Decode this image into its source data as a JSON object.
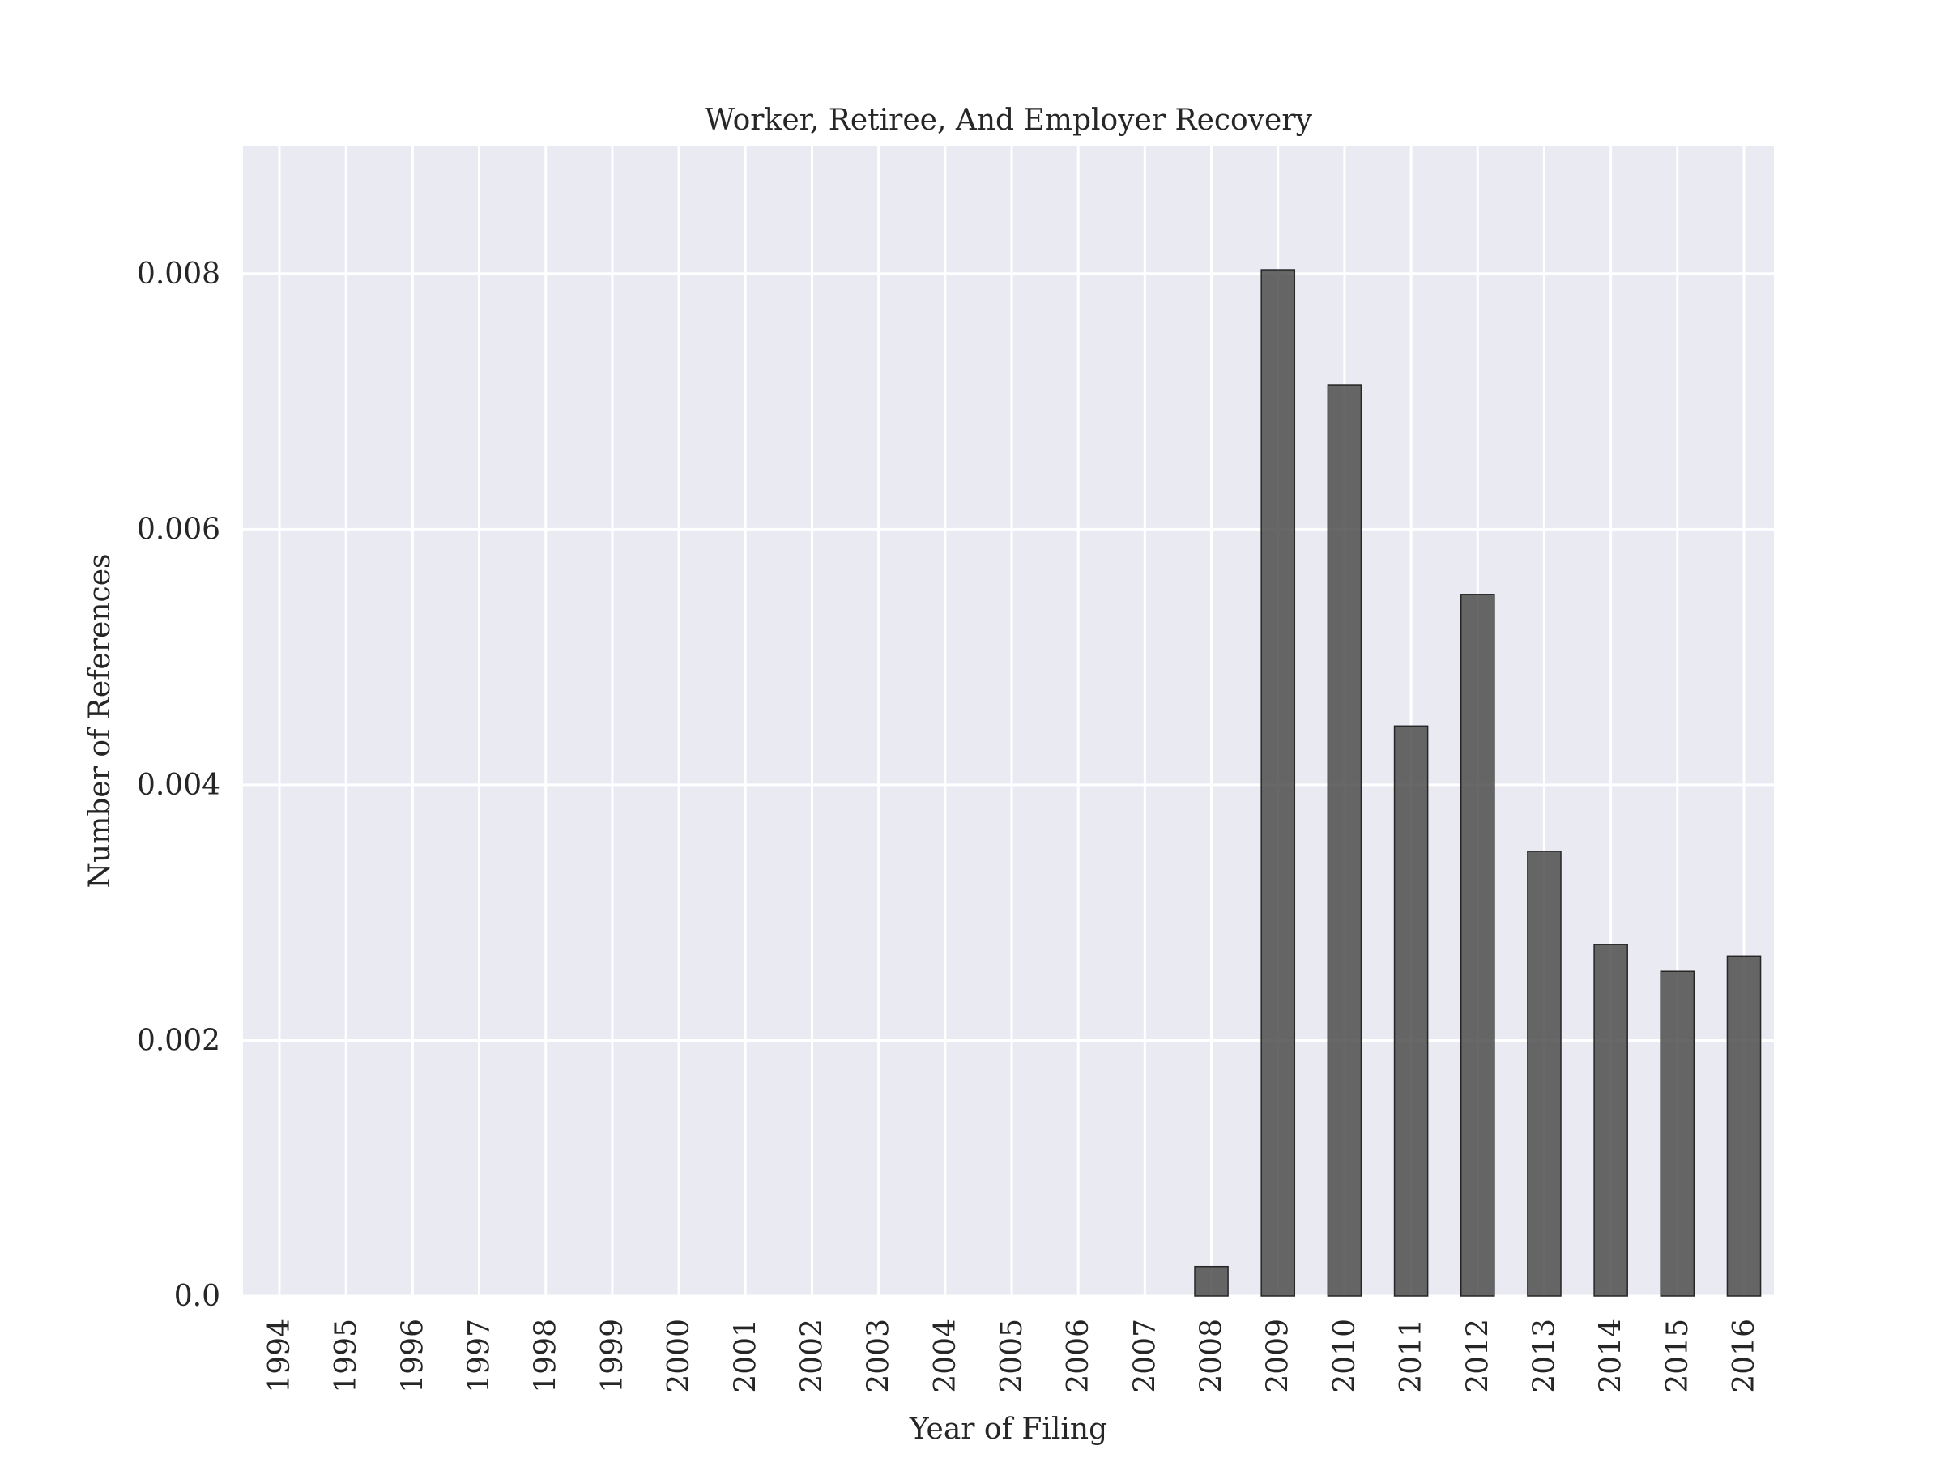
{
  "chart_data": {
    "type": "bar",
    "title": "Worker, Retiree, And Employer Recovery",
    "xlabel": "Year of Filing",
    "ylabel": "Number of References",
    "categories": [
      "1994",
      "1995",
      "1996",
      "1997",
      "1998",
      "1999",
      "2000",
      "2001",
      "2002",
      "2003",
      "2004",
      "2005",
      "2006",
      "2007",
      "2008",
      "2009",
      "2010",
      "2011",
      "2012",
      "2013",
      "2014",
      "2015",
      "2016"
    ],
    "values": [
      0,
      0,
      0,
      0,
      0,
      0,
      0,
      0,
      0,
      0,
      0,
      0,
      0,
      0,
      0.00023,
      0.00803,
      0.00713,
      0.00446,
      0.00549,
      0.00348,
      0.00275,
      0.00254,
      0.00266
    ],
    "ylim": [
      0,
      0.009
    ],
    "yticks": [
      0,
      0.002,
      0.004,
      0.006,
      0.008
    ],
    "ytick_labels": [
      "0.0",
      "0.002",
      "0.004",
      "0.006",
      "0.008"
    ],
    "grid": true,
    "bar_color": "#4d4d4d",
    "background_color": "#eaeaf2"
  }
}
